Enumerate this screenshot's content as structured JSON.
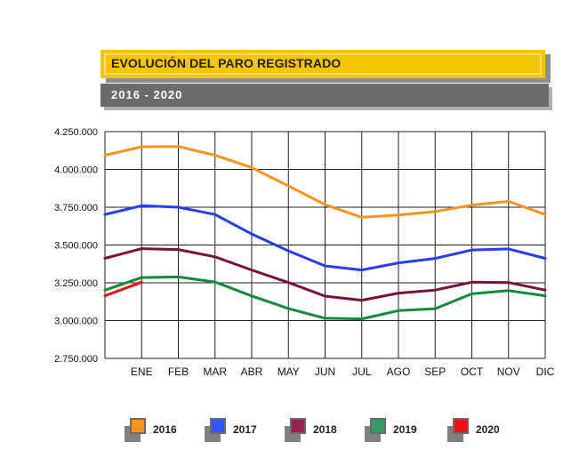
{
  "header": {
    "title": "EVOLUCIÓN DEL PARO REGISTRADO",
    "subtitle": "2016 - 2020"
  },
  "chart_data": {
    "type": "line",
    "title": "EVOLUCIÓN DEL PARO REGISTRADO",
    "subtitle": "2016 - 2020",
    "x": [
      "",
      "ENE",
      "FEB",
      "MAR",
      "ABR",
      "MAY",
      "JUN",
      "JUL",
      "AGO",
      "SEP",
      "OCT",
      "NOV",
      "DIC"
    ],
    "ylim": [
      2750000,
      4250000
    ],
    "yticks": [
      2750000,
      3000000,
      3250000,
      3500000,
      3750000,
      4000000,
      4250000
    ],
    "ytick_labels": [
      "2.750.000",
      "3.000.000",
      "3.250.000",
      "3.500.000",
      "3.750.000",
      "4.000.000",
      "4.250.000"
    ],
    "grid": true,
    "legend_position": "bottom",
    "series": [
      {
        "name": "2016",
        "color": "#f7941d",
        "values": [
          4094000,
          4150000,
          4152000,
          4094000,
          4012000,
          3891000,
          3767000,
          3683000,
          3698000,
          3721000,
          3764000,
          3789000,
          3702000
        ]
      },
      {
        "name": "2017",
        "color": "#2a3cf0",
        "values": [
          3702000,
          3760000,
          3750000,
          3702000,
          3573000,
          3461000,
          3362000,
          3335000,
          3382000,
          3411000,
          3467000,
          3474000,
          3412000
        ]
      },
      {
        "name": "2018",
        "color": "#7a1040",
        "values": [
          3412000,
          3476000,
          3470000,
          3422000,
          3335000,
          3252000,
          3162000,
          3135000,
          3182000,
          3202000,
          3254000,
          3252000,
          3202000
        ]
      },
      {
        "name": "2019",
        "color": "#148a3c",
        "values": [
          3202000,
          3285000,
          3289000,
          3255000,
          3163000,
          3080000,
          3015000,
          3011000,
          3066000,
          3079000,
          3177000,
          3198000,
          3164000
        ]
      },
      {
        "name": "2020",
        "color": "#ee1111",
        "values": [
          3164000,
          3254000,
          null,
          null,
          null,
          null,
          null,
          null,
          null,
          null,
          null,
          null,
          null
        ]
      }
    ]
  },
  "legend": [
    {
      "label": "2016",
      "color": "#f7941d"
    },
    {
      "label": "2017",
      "color": "#3355ff"
    },
    {
      "label": "2018",
      "color": "#992255"
    },
    {
      "label": "2019",
      "color": "#339966"
    },
    {
      "label": "2020",
      "color": "#ee1111"
    }
  ]
}
